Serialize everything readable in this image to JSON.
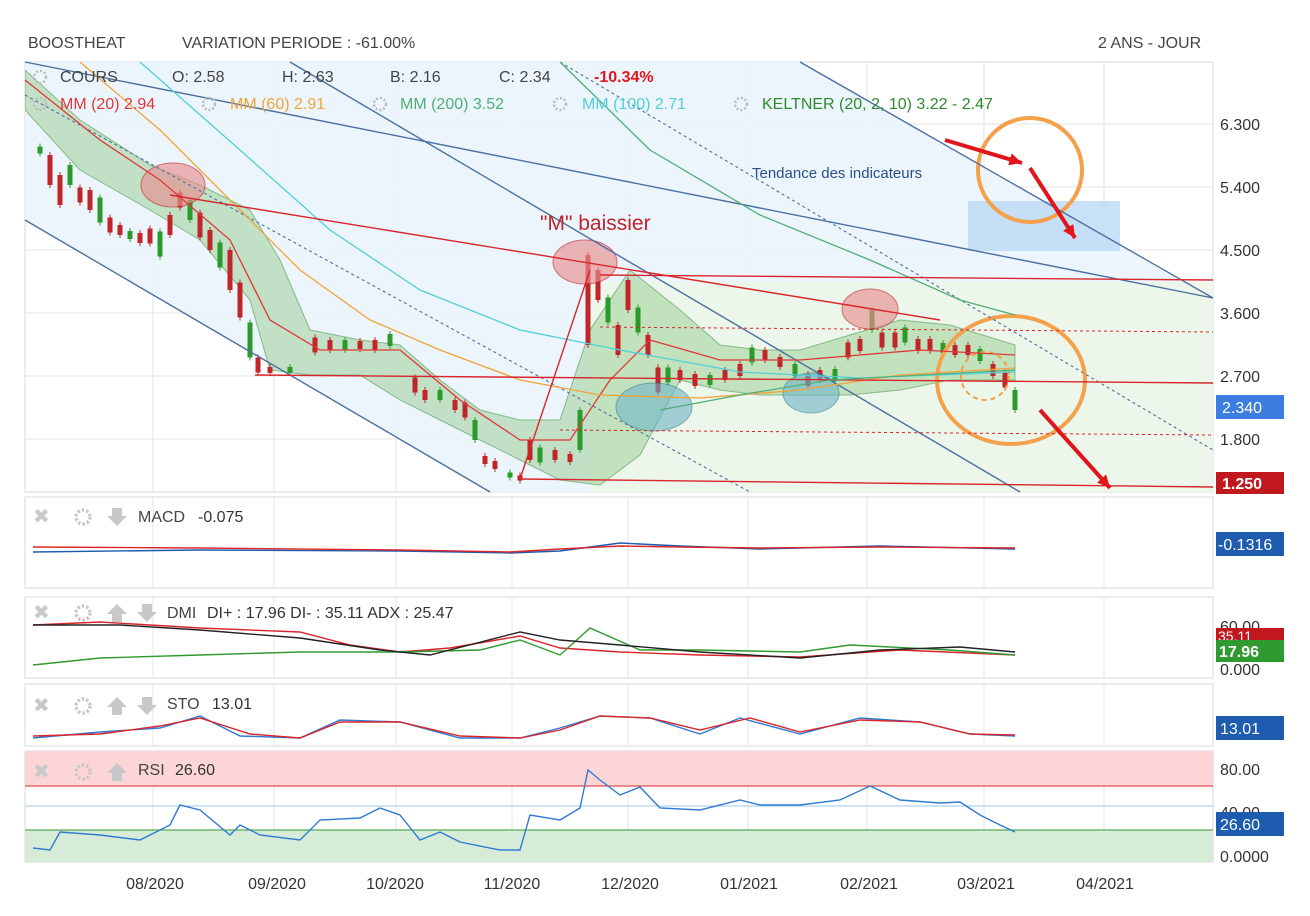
{
  "header": {
    "ticker": "BOOSTHEAT",
    "variation": "VARIATION PERIODE : -61.00%",
    "period": "2 ANS - JOUR"
  },
  "legend": {
    "cours_label": "COURS",
    "open": "O: 2.58",
    "high": "H: 2.63",
    "low": "B: 2.16",
    "close": "C: 2.34",
    "change": "-10.34%",
    "mm20": "MM (20) 2.94",
    "mm60": "MM (60) 2.91",
    "mm200": "MM (200) 3.52",
    "mm100": "MM (100) 2.71",
    "keltner": "KELTNER (20, 2, 10) 3.22 - 2.47"
  },
  "annotations": {
    "m_baissier": "\"M\" baissier",
    "tendance": "Tendance des indicateurs"
  },
  "colors": {
    "mm20": "#e0383a",
    "mm60": "#f2a33a",
    "mm200": "#4fae77",
    "mm100": "#4fd0d8",
    "keltner": "#2f8a2f",
    "channel": "#4a6fa0",
    "red_line": "#d9262b",
    "orange_circle": "#f5a04a",
    "macd": "#1d5cae",
    "signal": "#d9262b",
    "di_plus": "#2f9a30",
    "adx": "#222222",
    "rsi": "#2f7ad3"
  },
  "chart_data": {
    "type": "candlestick",
    "x_ticks": [
      "08/2020",
      "09/2020",
      "10/2020",
      "11/2020",
      "12/2020",
      "01/2021",
      "02/2021",
      "03/2021",
      "04/2021"
    ],
    "price_ticks": [
      "6.300",
      "5.400",
      "4.500",
      "3.600",
      "2.700",
      "1.800"
    ],
    "y_scale": "log",
    "last_price": "2.340",
    "support_label": "1.250",
    "price_series": [
      {
        "date": "2020-07-01",
        "close": 6.0
      },
      {
        "date": "2020-07-10",
        "close": 5.6
      },
      {
        "date": "2020-07-20",
        "close": 4.9
      },
      {
        "date": "2020-08-01",
        "close": 4.4
      },
      {
        "date": "2020-08-10",
        "close": 5.0
      },
      {
        "date": "2020-08-20",
        "close": 4.4
      },
      {
        "date": "2020-09-01",
        "close": 2.8
      },
      {
        "date": "2020-09-15",
        "close": 2.9
      },
      {
        "date": "2020-10-01",
        "close": 3.1
      },
      {
        "date": "2020-10-10",
        "close": 2.4
      },
      {
        "date": "2020-10-25",
        "close": 1.9
      },
      {
        "date": "2020-11-01",
        "close": 1.35
      },
      {
        "date": "2020-11-10",
        "close": 1.55
      },
      {
        "date": "2020-11-20",
        "close": 4.2
      },
      {
        "date": "2020-12-01",
        "close": 3.7
      },
      {
        "date": "2020-12-10",
        "close": 2.7
      },
      {
        "date": "2021-01-01",
        "close": 2.6
      },
      {
        "date": "2021-01-15",
        "close": 2.7
      },
      {
        "date": "2021-02-01",
        "close": 3.0
      },
      {
        "date": "2021-02-10",
        "close": 3.5
      },
      {
        "date": "2021-02-25",
        "close": 3.0
      },
      {
        "date": "2021-03-05",
        "close": 2.8
      },
      {
        "date": "2021-03-10",
        "close": 2.34
      }
    ],
    "indicators": [
      {
        "name": "MACD",
        "label": "MACD",
        "value_text": "-0.075",
        "badge": "-0.1316"
      },
      {
        "name": "DMI",
        "label": "DMI",
        "value_text": "DI+ : 17.96 DI- : 35.11 ADX : 25.47",
        "ticks": [
          "60.00",
          "0.000"
        ],
        "badges": [
          "35.11",
          "17.96"
        ]
      },
      {
        "name": "STO",
        "label": "STO",
        "value_text": "13.01",
        "badge": "13.01"
      },
      {
        "name": "RSI",
        "label": "RSI",
        "value_text": "26.60",
        "ticks": [
          "80.00",
          "40.00",
          "0.0000"
        ],
        "badge": "26.60"
      }
    ]
  }
}
